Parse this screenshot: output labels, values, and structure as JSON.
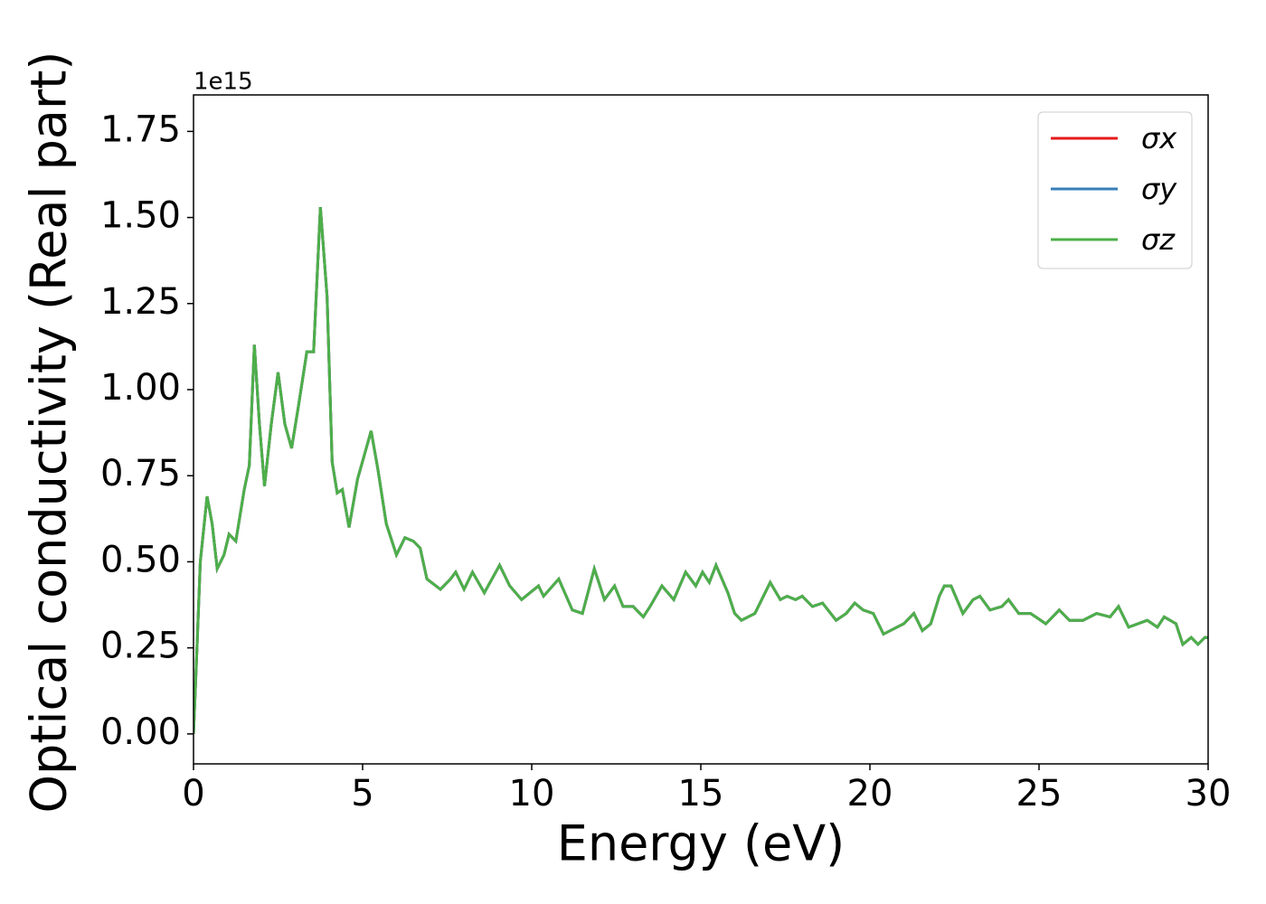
{
  "chart_data": {
    "type": "line",
    "xlabel": "Energy (eV)",
    "ylabel": "Optical conductivity (Real part)",
    "y_offset_label": "1e15",
    "x": [
      0,
      0.1,
      0.2,
      0.4,
      0.55,
      0.7,
      0.9,
      1.05,
      1.25,
      1.5,
      1.65,
      1.8,
      1.95,
      2.1,
      2.3,
      2.5,
      2.7,
      2.9,
      3.1,
      3.35,
      3.55,
      3.75,
      3.95,
      4.1,
      4.25,
      4.4,
      4.6,
      4.85,
      5.05,
      5.25,
      5.45,
      5.7,
      6.0,
      6.25,
      6.5,
      6.7,
      6.9,
      7.3,
      7.6,
      7.75,
      8.0,
      8.25,
      8.6,
      9.05,
      9.35,
      9.7,
      9.95,
      10.2,
      10.35,
      10.8,
      11.2,
      11.5,
      11.85,
      12.15,
      12.45,
      12.7,
      13.0,
      13.3,
      13.5,
      13.85,
      14.2,
      14.55,
      14.85,
      15.05,
      15.25,
      15.45,
      15.8,
      16.0,
      16.2,
      16.6,
      17.05,
      17.35,
      17.55,
      17.8,
      18.0,
      18.3,
      18.6,
      19.0,
      19.3,
      19.55,
      19.8,
      20.1,
      20.4,
      20.8,
      21.0,
      21.3,
      21.55,
      21.8,
      22.05,
      22.2,
      22.4,
      22.75,
      23.05,
      23.25,
      23.55,
      23.9,
      24.1,
      24.4,
      24.75,
      25.2,
      25.6,
      25.9,
      26.3,
      26.7,
      27.1,
      27.35,
      27.65,
      28.2,
      28.5,
      28.7,
      29.05,
      29.25,
      29.5,
      29.7,
      29.9,
      30
    ],
    "series": [
      {
        "name": "σx",
        "color": "#e41a1c",
        "values": [
          0,
          0.24,
          0.5,
          0.69,
          0.61,
          0.48,
          0.52,
          0.58,
          0.56,
          0.71,
          0.78,
          1.13,
          0.9,
          0.72,
          0.9,
          1.05,
          0.9,
          0.83,
          0.95,
          1.11,
          1.11,
          1.53,
          1.27,
          0.79,
          0.7,
          0.71,
          0.6,
          0.74,
          0.81,
          0.88,
          0.77,
          0.61,
          0.52,
          0.57,
          0.56,
          0.54,
          0.45,
          0.42,
          0.45,
          0.47,
          0.42,
          0.47,
          0.41,
          0.49,
          0.43,
          0.39,
          0.41,
          0.43,
          0.4,
          0.45,
          0.36,
          0.35,
          0.48,
          0.39,
          0.43,
          0.37,
          0.37,
          0.34,
          0.37,
          0.43,
          0.39,
          0.47,
          0.43,
          0.47,
          0.44,
          0.49,
          0.41,
          0.35,
          0.33,
          0.35,
          0.44,
          0.39,
          0.4,
          0.39,
          0.4,
          0.37,
          0.38,
          0.33,
          0.35,
          0.38,
          0.36,
          0.35,
          0.29,
          0.31,
          0.32,
          0.35,
          0.3,
          0.32,
          0.4,
          0.43,
          0.43,
          0.35,
          0.39,
          0.4,
          0.36,
          0.37,
          0.39,
          0.35,
          0.35,
          0.32,
          0.36,
          0.33,
          0.33,
          0.35,
          0.34,
          0.37,
          0.31,
          0.33,
          0.31,
          0.34,
          0.32,
          0.26,
          0.28,
          0.26,
          0.28,
          0.28
        ]
      },
      {
        "name": "σy",
        "color": "#377eb8",
        "values": [
          0,
          0.24,
          0.5,
          0.69,
          0.61,
          0.48,
          0.52,
          0.58,
          0.56,
          0.71,
          0.78,
          1.13,
          0.9,
          0.72,
          0.9,
          1.05,
          0.9,
          0.83,
          0.95,
          1.11,
          1.11,
          1.53,
          1.27,
          0.79,
          0.7,
          0.71,
          0.6,
          0.74,
          0.81,
          0.88,
          0.77,
          0.61,
          0.52,
          0.57,
          0.56,
          0.54,
          0.45,
          0.42,
          0.45,
          0.47,
          0.42,
          0.47,
          0.41,
          0.49,
          0.43,
          0.39,
          0.41,
          0.43,
          0.4,
          0.45,
          0.36,
          0.35,
          0.48,
          0.39,
          0.43,
          0.37,
          0.37,
          0.34,
          0.37,
          0.43,
          0.39,
          0.47,
          0.43,
          0.47,
          0.44,
          0.49,
          0.41,
          0.35,
          0.33,
          0.35,
          0.44,
          0.39,
          0.4,
          0.39,
          0.4,
          0.37,
          0.38,
          0.33,
          0.35,
          0.38,
          0.36,
          0.35,
          0.29,
          0.31,
          0.32,
          0.35,
          0.3,
          0.32,
          0.4,
          0.43,
          0.43,
          0.35,
          0.39,
          0.4,
          0.36,
          0.37,
          0.39,
          0.35,
          0.35,
          0.32,
          0.36,
          0.33,
          0.33,
          0.35,
          0.34,
          0.37,
          0.31,
          0.33,
          0.31,
          0.34,
          0.32,
          0.26,
          0.28,
          0.26,
          0.28,
          0.28
        ]
      },
      {
        "name": "σz",
        "color": "#4daf4a",
        "values": [
          0,
          0.24,
          0.5,
          0.69,
          0.61,
          0.48,
          0.52,
          0.58,
          0.56,
          0.71,
          0.78,
          1.13,
          0.9,
          0.72,
          0.9,
          1.05,
          0.9,
          0.83,
          0.95,
          1.11,
          1.11,
          1.53,
          1.27,
          0.79,
          0.7,
          0.71,
          0.6,
          0.74,
          0.81,
          0.88,
          0.77,
          0.61,
          0.52,
          0.57,
          0.56,
          0.54,
          0.45,
          0.42,
          0.45,
          0.47,
          0.42,
          0.47,
          0.41,
          0.49,
          0.43,
          0.39,
          0.41,
          0.43,
          0.4,
          0.45,
          0.36,
          0.35,
          0.48,
          0.39,
          0.43,
          0.37,
          0.37,
          0.34,
          0.37,
          0.43,
          0.39,
          0.47,
          0.43,
          0.47,
          0.44,
          0.49,
          0.41,
          0.35,
          0.33,
          0.35,
          0.44,
          0.39,
          0.4,
          0.39,
          0.4,
          0.37,
          0.38,
          0.33,
          0.35,
          0.38,
          0.36,
          0.35,
          0.29,
          0.31,
          0.32,
          0.35,
          0.3,
          0.32,
          0.4,
          0.43,
          0.43,
          0.35,
          0.39,
          0.4,
          0.36,
          0.37,
          0.39,
          0.35,
          0.35,
          0.32,
          0.36,
          0.33,
          0.33,
          0.35,
          0.34,
          0.37,
          0.31,
          0.33,
          0.31,
          0.34,
          0.32,
          0.26,
          0.28,
          0.26,
          0.28,
          0.28
        ]
      }
    ],
    "xlim": [
      0,
      30
    ],
    "xticks": [
      0,
      5,
      10,
      15,
      20,
      25,
      30
    ],
    "ylim": [
      -0.087,
      1.856
    ],
    "yticks": [
      {
        "value": 0,
        "label": "0.00"
      },
      0.25,
      {
        "value": 0.5,
        "label": "0.50"
      },
      0.75,
      {
        "value": 1,
        "label": "1.00"
      },
      1.25,
      {
        "value": 1.5,
        "label": "1.50"
      },
      1.75
    ],
    "grid": false,
    "legend": "upper right"
  }
}
